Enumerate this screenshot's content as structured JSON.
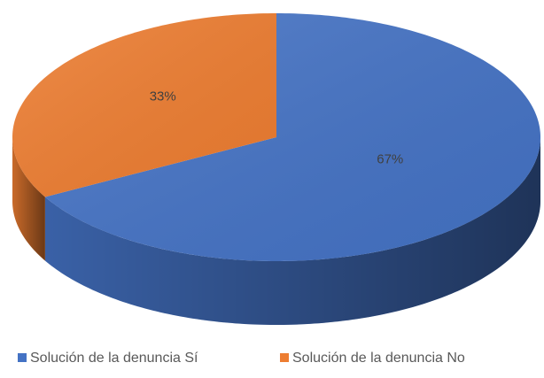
{
  "chart_data": {
    "type": "pie",
    "categories": [
      "Solución de la denuncia Sí",
      "Solución de la denuncia No"
    ],
    "values": [
      67,
      33
    ],
    "value_labels": [
      "67%",
      "33%"
    ],
    "colors": [
      "#4472c4",
      "#ed7d31"
    ],
    "legend": "bottom"
  }
}
